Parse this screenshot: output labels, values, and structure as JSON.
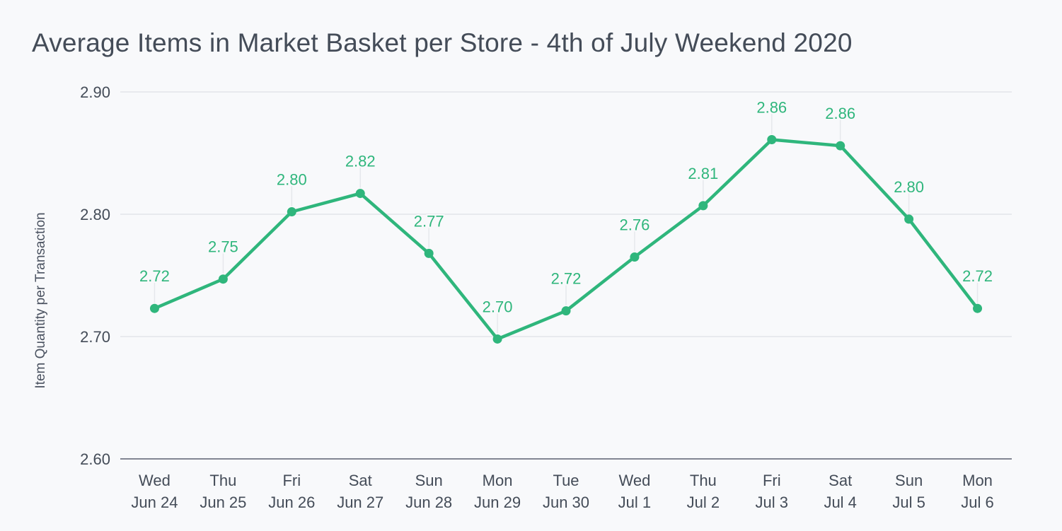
{
  "chart_data": {
    "type": "line",
    "title": "Average Items in Market Basket per Store - 4th of July Weekend 2020",
    "xlabel": "",
    "ylabel": "Item Quantity per Transaction",
    "ylim": [
      2.6,
      2.9
    ],
    "yticks": [
      "2.90",
      "2.80",
      "2.70",
      "2.60"
    ],
    "ytick_values": [
      2.9,
      2.8,
      2.7,
      2.6
    ],
    "grid": true,
    "legend": null,
    "categories": [
      [
        "Wed",
        "Jun 24"
      ],
      [
        "Thu",
        "Jun 25"
      ],
      [
        "Fri",
        "Jun 26"
      ],
      [
        "Sat",
        "Jun 27"
      ],
      [
        "Sun",
        "Jun 28"
      ],
      [
        "Mon",
        "Jun 29"
      ],
      [
        "Tue",
        "Jun 30"
      ],
      [
        "Wed",
        "Jul 1"
      ],
      [
        "Thu",
        "Jul 2"
      ],
      [
        "Fri",
        "Jul 3"
      ],
      [
        "Sat",
        "Jul 4"
      ],
      [
        "Sun",
        "Jul 5"
      ],
      [
        "Mon",
        "Jul 6"
      ]
    ],
    "series": [
      {
        "name": "Item Quantity per Transaction",
        "color": "#2fb67c",
        "values": [
          2.723,
          2.747,
          2.802,
          2.817,
          2.768,
          2.698,
          2.721,
          2.765,
          2.807,
          2.861,
          2.856,
          2.796,
          2.723
        ],
        "labels": [
          "2.72",
          "2.75",
          "2.80",
          "2.82",
          "2.77",
          "2.70",
          "2.72",
          "2.76",
          "2.81",
          "2.86",
          "2.86",
          "2.80",
          "2.72"
        ]
      }
    ]
  },
  "colors": {
    "line": "#2fb67c",
    "grid": "#d9dce2",
    "axis": "#5a6170",
    "text": "#444c58",
    "background": "#f8f9fb"
  }
}
